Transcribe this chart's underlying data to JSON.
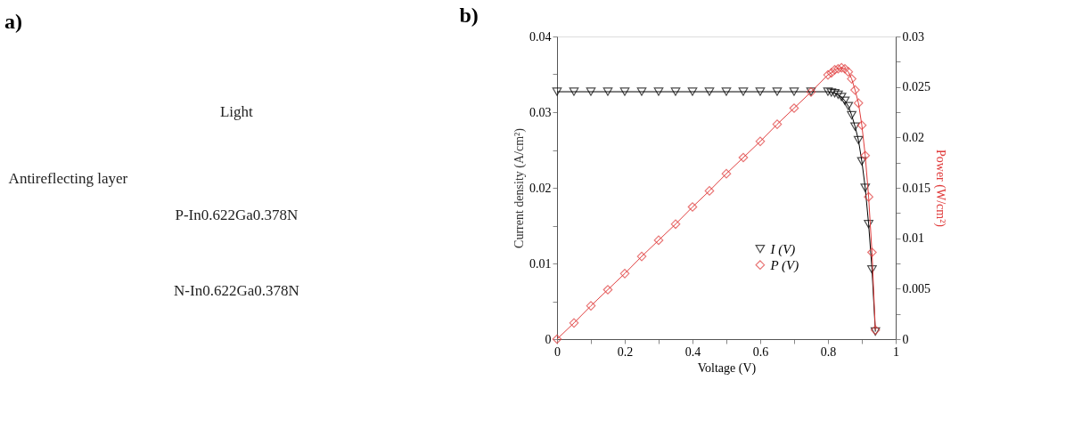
{
  "chart_data": [
    {
      "type": "other",
      "title": "a)",
      "annotations": [
        "Light",
        "Antireflecting layer",
        "P-In0.622Ga0.378N",
        "N-In0.622Ga0.378N"
      ]
    },
    {
      "type": "line",
      "title": "b)",
      "xlabel": "Voltage (V)",
      "ylabel": "Current density (A/cm²)",
      "y2label": "Power (W/cm²)",
      "x": [
        0,
        0.05,
        0.1,
        0.15,
        0.2,
        0.25,
        0.3,
        0.35,
        0.4,
        0.45,
        0.5,
        0.55,
        0.6,
        0.65,
        0.7,
        0.75,
        0.8,
        0.81,
        0.82,
        0.83,
        0.84,
        0.85,
        0.86,
        0.87,
        0.88,
        0.89,
        0.9,
        0.91,
        0.92,
        0.93,
        0.94
      ],
      "series": [
        {
          "name": "I (V)",
          "color": "#000000",
          "marker": "triangle",
          "values": [
            0.0327,
            0.0327,
            0.0327,
            0.0327,
            0.0327,
            0.0327,
            0.0327,
            0.0327,
            0.0327,
            0.0327,
            0.0327,
            0.0327,
            0.0327,
            0.0327,
            0.0327,
            0.0327,
            0.0327,
            0.0326,
            0.0325,
            0.0323,
            0.032,
            0.0315,
            0.0308,
            0.0296,
            0.0281,
            0.0263,
            0.0235,
            0.02,
            0.0152,
            0.0092,
            0.001
          ]
        },
        {
          "name": "P (V)",
          "color": "#e03c3c",
          "marker": "diamond",
          "axis": "y2",
          "values": [
            0,
            0.0016,
            0.0033,
            0.0049,
            0.0065,
            0.0082,
            0.0098,
            0.0114,
            0.0131,
            0.0147,
            0.0164,
            0.018,
            0.0196,
            0.0213,
            0.0229,
            0.0245,
            0.0262,
            0.0264,
            0.0267,
            0.0268,
            0.0269,
            0.0268,
            0.0265,
            0.0258,
            0.0247,
            0.0234,
            0.0212,
            0.0182,
            0.0141,
            0.0086,
            0.0009
          ]
        }
      ],
      "xlim": [
        0,
        1
      ],
      "xticks": [
        0,
        {
          "value": 0.1,
          "label": null
        },
        0.2,
        {
          "value": 0.3,
          "label": null
        },
        0.4,
        {
          "value": 0.5,
          "label": null
        },
        0.6,
        {
          "value": 0.7,
          "label": null
        },
        0.8,
        {
          "value": 0.9,
          "label": null
        },
        1
      ],
      "ylim": [
        0,
        0.04
      ],
      "yticks": [
        0,
        {
          "value": 0.005,
          "label": null
        },
        0.01,
        {
          "value": 0.015,
          "label": null
        },
        0.02,
        {
          "value": 0.025,
          "label": null
        },
        0.03,
        {
          "value": 0.035,
          "label": null
        },
        0.04
      ],
      "y2lim": [
        0,
        0.03
      ],
      "y2ticks": [
        0,
        {
          "value": 0.0025,
          "label": null
        },
        0.005,
        {
          "value": 0.0075,
          "label": null
        },
        0.01,
        {
          "value": 0.0125,
          "label": null
        },
        0.015,
        {
          "value": 0.0175,
          "label": null
        },
        0.02,
        {
          "value": 0.0225,
          "label": null
        },
        0.025,
        {
          "value": 0.0275,
          "label": null
        },
        0.03
      ],
      "grid": false,
      "legend": "bottom right",
      "line_style": "solid"
    }
  ]
}
